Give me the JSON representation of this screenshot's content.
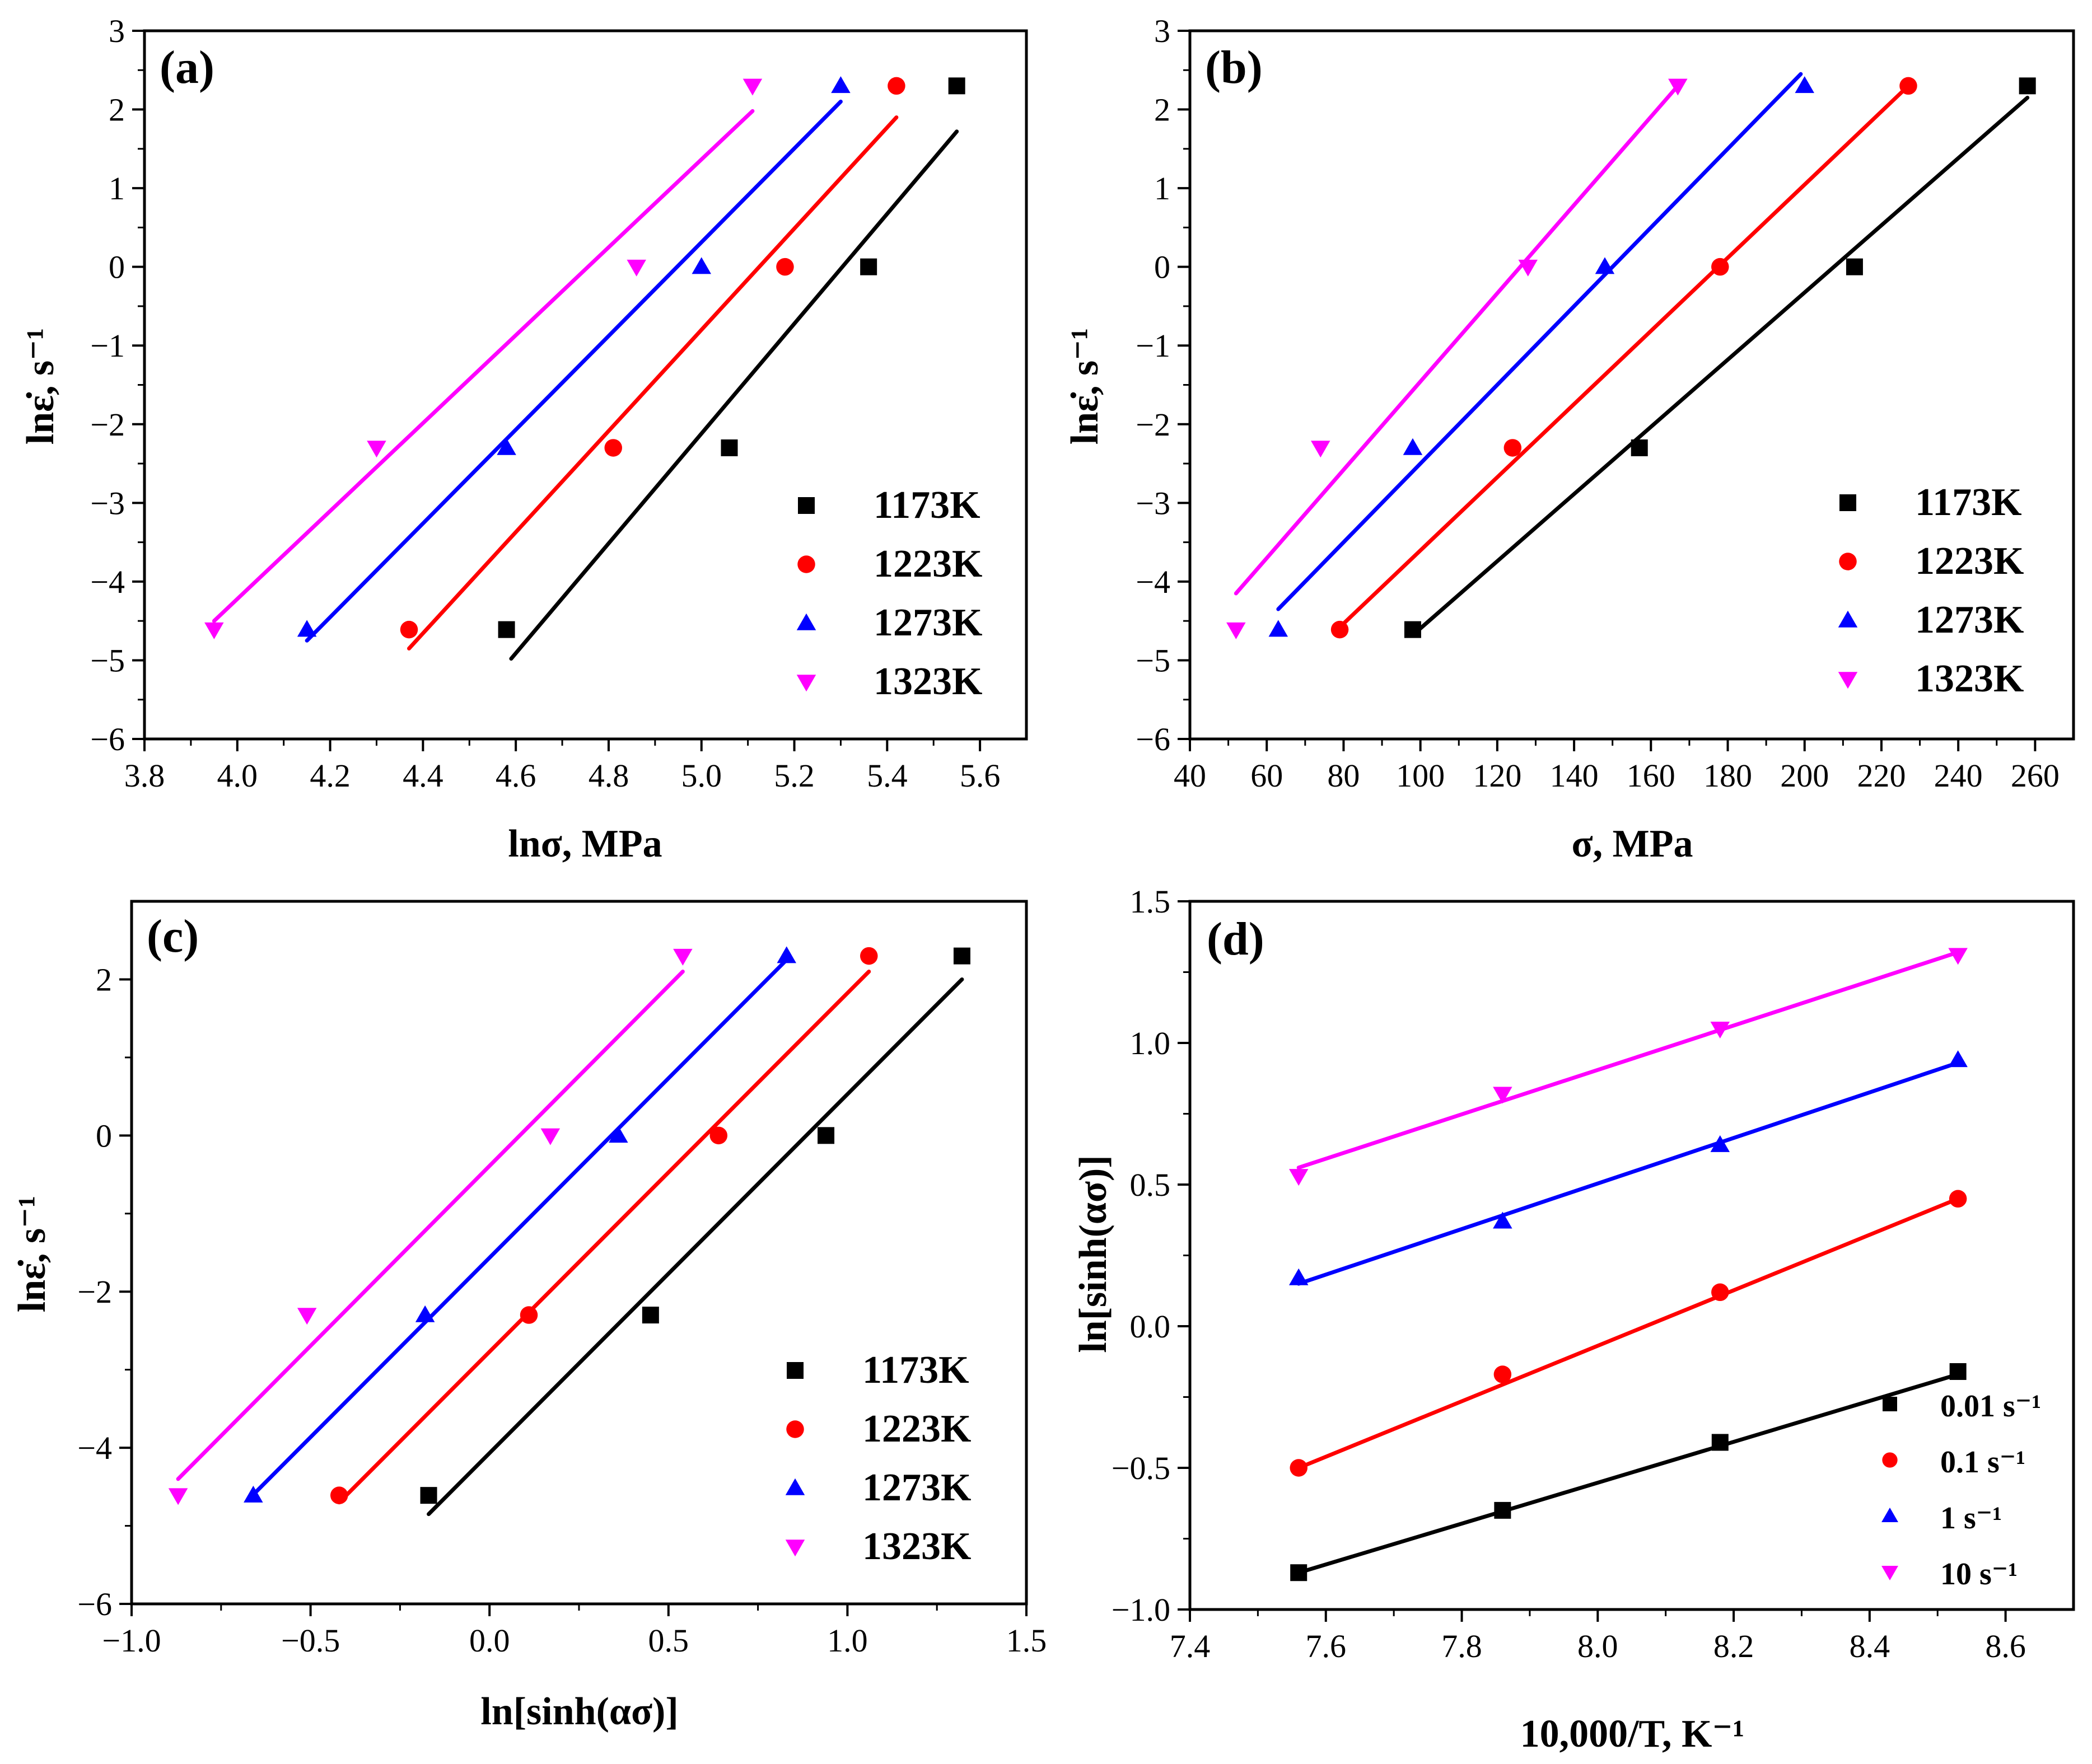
{
  "chart_data": [
    {
      "panel": "(a)",
      "type": "scatter",
      "xlabel": "lnσ, MPa",
      "ylabel": "lnε̇, s⁻¹",
      "xlim": [
        3.8,
        5.7
      ],
      "ylim": [
        -6,
        3
      ],
      "xticks": [
        "3.8",
        "4.0",
        "4.2",
        "4.4",
        "4.6",
        "4.8",
        "5.0",
        "5.2",
        "5.4",
        "5.6"
      ],
      "yticks": [
        "−6",
        "−5",
        "−4",
        "−3",
        "−2",
        "−1",
        "0",
        "1",
        "2",
        "3"
      ],
      "legend_position": "bottom-right",
      "series": [
        {
          "name": "1173K",
          "color": "#000000",
          "marker": "square",
          "x": [
            4.58,
            5.06,
            5.36,
            5.55
          ],
          "y": [
            -4.61,
            -2.3,
            0.0,
            2.3
          ],
          "fit": [
            [
              4.59,
              -4.98
            ],
            [
              5.55,
              1.72
            ]
          ]
        },
        {
          "name": "1223K",
          "color": "#ff0000",
          "marker": "circle",
          "x": [
            4.37,
            4.81,
            5.18,
            5.42
          ],
          "y": [
            -4.61,
            -2.3,
            0.0,
            2.3
          ],
          "fit": [
            [
              4.37,
              -4.85
            ],
            [
              5.42,
              1.9
            ]
          ]
        },
        {
          "name": "1273K",
          "color": "#0000ff",
          "marker": "triangle-up",
          "x": [
            4.15,
            4.58,
            5.0,
            5.3
          ],
          "y": [
            -4.61,
            -2.3,
            0.0,
            2.3
          ],
          "fit": [
            [
              4.15,
              -4.75
            ],
            [
              5.3,
              2.1
            ]
          ]
        },
        {
          "name": "1323K",
          "color": "#ff00ff",
          "marker": "triangle-down",
          "x": [
            3.95,
            4.3,
            4.86,
            5.11
          ],
          "y": [
            -4.61,
            -2.3,
            0.0,
            2.3
          ],
          "fit": [
            [
              3.95,
              -4.5
            ],
            [
              5.11,
              1.98
            ]
          ]
        }
      ]
    },
    {
      "panel": "(b)",
      "type": "scatter",
      "xlabel": "σ, MPa",
      "ylabel": "lnε̇, s⁻¹",
      "xlim": [
        40,
        270
      ],
      "ylim": [
        -6,
        3
      ],
      "xticks": [
        "40",
        "60",
        "80",
        "100",
        "120",
        "140",
        "160",
        "180",
        "200",
        "220",
        "240",
        "260"
      ],
      "yticks": [
        "−6",
        "−5",
        "−4",
        "−3",
        "−2",
        "−1",
        "0",
        "1",
        "2",
        "3"
      ],
      "legend_position": "bottom-right",
      "series": [
        {
          "name": "1173K",
          "color": "#000000",
          "marker": "square",
          "x": [
            98,
            157,
            213,
            258
          ],
          "y": [
            -4.61,
            -2.3,
            0.0,
            2.3
          ],
          "fit": [
            [
              98,
              -4.68
            ],
            [
              258,
              2.15
            ]
          ]
        },
        {
          "name": "1223K",
          "color": "#ff0000",
          "marker": "circle",
          "x": [
            79,
            124,
            178,
            227
          ],
          "y": [
            -4.61,
            -2.3,
            0.0,
            2.3
          ],
          "fit": [
            [
              79,
              -4.58
            ],
            [
              227,
              2.3
            ]
          ]
        },
        {
          "name": "1273K",
          "color": "#0000ff",
          "marker": "triangle-up",
          "x": [
            63,
            98,
            148,
            200
          ],
          "y": [
            -4.61,
            -2.3,
            0.0,
            2.3
          ],
          "fit": [
            [
              63,
              -4.35
            ],
            [
              199,
              2.45
            ]
          ]
        },
        {
          "name": "1323K",
          "color": "#ff00ff",
          "marker": "triangle-down",
          "x": [
            52,
            74,
            128,
            167
          ],
          "y": [
            -4.61,
            -2.3,
            0.0,
            2.3
          ],
          "fit": [
            [
              52,
              -4.15
            ],
            [
              167,
              2.3
            ]
          ]
        }
      ]
    },
    {
      "panel": "(c)",
      "type": "scatter",
      "xlabel": "ln[sinh(ασ)]",
      "ylabel": "lnε̇, s⁻¹",
      "xlim": [
        -1.0,
        1.5
      ],
      "ylim": [
        -6,
        3
      ],
      "xticks": [
        "−1.0",
        "−0.5",
        "0.0",
        "0.5",
        "1.0",
        "1.5"
      ],
      "yticks": [
        "−6",
        "−4",
        "−2",
        "0",
        "2"
      ],
      "legend_position": "bottom-right",
      "series": [
        {
          "name": "1173K",
          "color": "#000000",
          "marker": "square",
          "x": [
            -0.17,
            0.45,
            0.94,
            1.32
          ],
          "y": [
            -4.61,
            -2.3,
            0.0,
            2.3
          ],
          "fit": [
            [
              -0.17,
              -4.85
            ],
            [
              1.32,
              2.0
            ]
          ]
        },
        {
          "name": "1223K",
          "color": "#ff0000",
          "marker": "circle",
          "x": [
            -0.42,
            0.11,
            0.64,
            1.06
          ],
          "y": [
            -4.61,
            -2.3,
            0.0,
            2.3
          ],
          "fit": [
            [
              -0.42,
              -4.7
            ],
            [
              1.06,
              2.1
            ]
          ]
        },
        {
          "name": "1273K",
          "color": "#0000ff",
          "marker": "triangle-up",
          "x": [
            -0.66,
            -0.18,
            0.36,
            0.83
          ],
          "y": [
            -4.61,
            -2.3,
            0.0,
            2.3
          ],
          "fit": [
            [
              -0.66,
              -4.6
            ],
            [
              0.83,
              2.25
            ]
          ]
        },
        {
          "name": "1323K",
          "color": "#ff00ff",
          "marker": "triangle-down",
          "x": [
            -0.87,
            -0.51,
            0.17,
            0.54
          ],
          "y": [
            -4.61,
            -2.3,
            0.0,
            2.3
          ],
          "fit": [
            [
              -0.87,
              -4.4
            ],
            [
              0.54,
              2.1
            ]
          ]
        }
      ]
    },
    {
      "panel": "(d)",
      "type": "scatter",
      "xlabel": "10,000/T, K⁻¹",
      "ylabel": "ln[sinh(ασ)]",
      "xlim": [
        7.4,
        8.7
      ],
      "ylim": [
        -1.0,
        1.5
      ],
      "xticks": [
        "7.4",
        "7.6",
        "7.8",
        "8.0",
        "8.2",
        "8.4",
        "8.6"
      ],
      "yticks": [
        "−1.0",
        "−0.5",
        "0.0",
        "0.5",
        "1.0",
        "1.5"
      ],
      "legend_position": "bottom-right",
      "series": [
        {
          "name": "0.01 s⁻¹",
          "color": "#000000",
          "marker": "square",
          "x": [
            7.56,
            7.86,
            8.18,
            8.53
          ],
          "y": [
            -0.87,
            -0.65,
            -0.41,
            -0.16
          ],
          "fit": [
            [
              7.56,
              -0.87
            ],
            [
              8.53,
              -0.17
            ]
          ]
        },
        {
          "name": "0.1 s⁻¹",
          "color": "#ff0000",
          "marker": "circle",
          "x": [
            7.56,
            7.86,
            8.18,
            8.53
          ],
          "y": [
            -0.5,
            -0.17,
            0.12,
            0.45
          ],
          "fit": [
            [
              7.56,
              -0.5
            ],
            [
              8.53,
              0.45
            ]
          ]
        },
        {
          "name": "1 s⁻¹",
          "color": "#0000ff",
          "marker": "triangle-up",
          "x": [
            7.56,
            7.86,
            8.18,
            8.53
          ],
          "y": [
            0.17,
            0.37,
            0.64,
            0.94
          ],
          "fit": [
            [
              7.56,
              0.15
            ],
            [
              8.53,
              0.93
            ]
          ]
        },
        {
          "name": "10 s⁻¹",
          "color": "#ff00ff",
          "marker": "triangle-down",
          "x": [
            7.56,
            7.86,
            8.18,
            8.53
          ],
          "y": [
            0.53,
            0.82,
            1.05,
            1.31
          ],
          "fit": [
            [
              7.56,
              0.56
            ],
            [
              8.53,
              1.32
            ]
          ]
        }
      ]
    }
  ]
}
